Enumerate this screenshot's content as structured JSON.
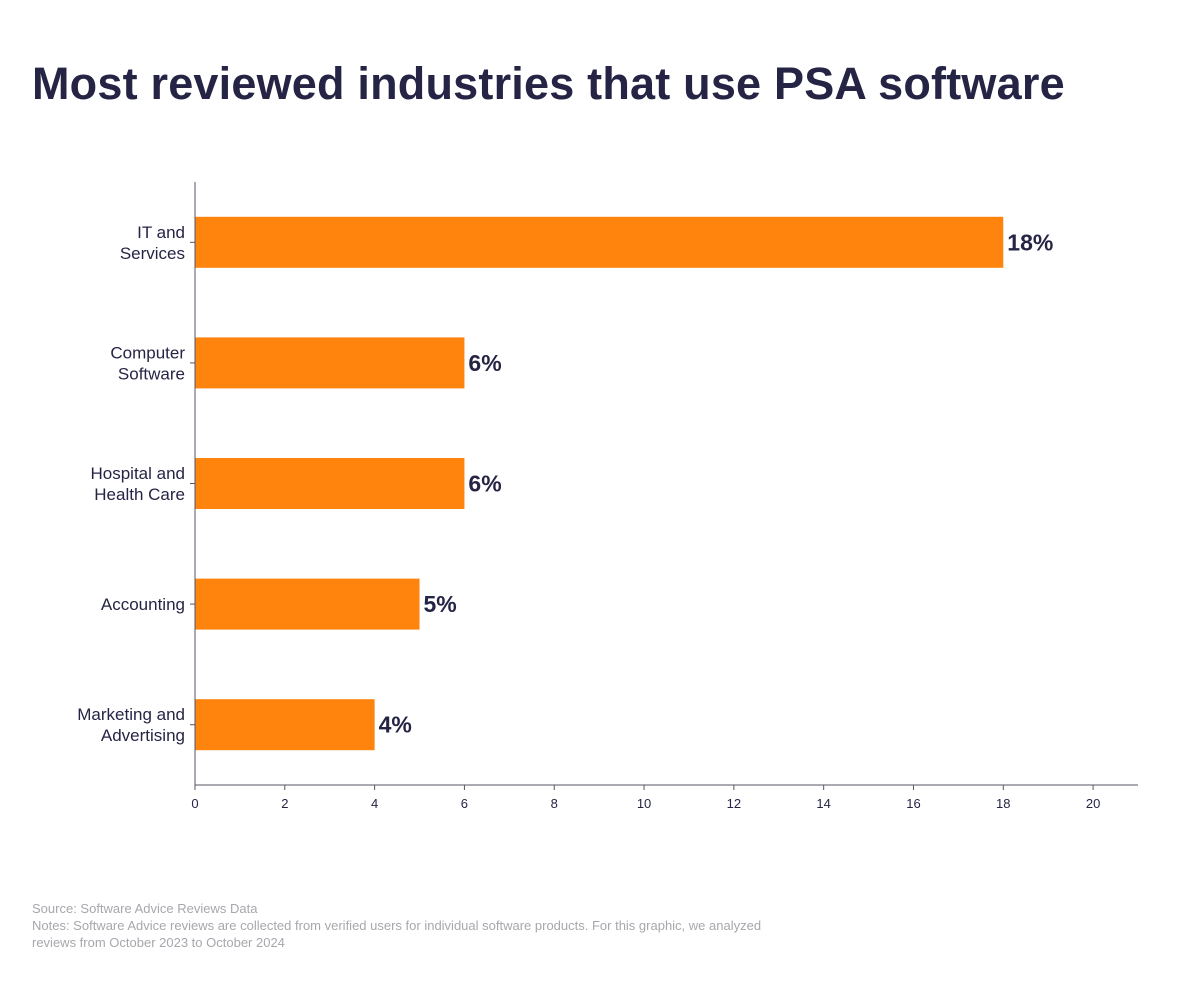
{
  "title": "Most reviewed industries that use PSA software",
  "chart_data": {
    "type": "bar",
    "orientation": "horizontal",
    "categories": [
      [
        "IT and",
        "Services"
      ],
      [
        "Computer",
        "Software"
      ],
      [
        "Hospital and",
        "Health Care"
      ],
      [
        "Accounting"
      ],
      [
        "Marketing and",
        "Advertising"
      ]
    ],
    "values": [
      18,
      6,
      6,
      5,
      4
    ],
    "data_labels": [
      "18%",
      "6%",
      "6%",
      "5%",
      "4%"
    ],
    "xlim": [
      0,
      21
    ],
    "xticks": [
      0,
      2,
      4,
      6,
      8,
      10,
      12,
      14,
      16,
      18,
      20
    ],
    "xlabel": "",
    "ylabel": "",
    "grid": false,
    "legend": "none",
    "colors": {
      "bar": "#fe840d",
      "text": "#252445",
      "axis": "#555566",
      "footer": "#a7a7ad"
    }
  },
  "footer": {
    "source": "Source: Software Advice Reviews Data",
    "notes_line1": "Notes: Software Advice reviews are collected from verified users for individual software products. For this graphic, we analyzed",
    "notes_line2": "reviews from October 2023 to October 2024"
  }
}
